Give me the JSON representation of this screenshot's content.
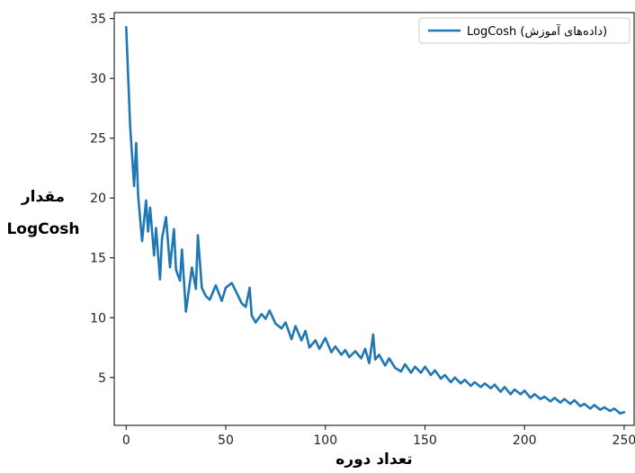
{
  "chart_data": {
    "type": "line",
    "title": "",
    "xlabel": "تعداد دوره",
    "ylabel_lines": [
      "مقدار",
      "LogCosh"
    ],
    "xlim": [
      -6,
      255
    ],
    "ylim": [
      1.0,
      35.5
    ],
    "xticks": [
      0,
      50,
      100,
      150,
      200,
      250
    ],
    "yticks": [
      5,
      10,
      15,
      20,
      25,
      30,
      35
    ],
    "grid": false,
    "legend_position": "top-right",
    "series": [
      {
        "name": "LogCosh (داده‌های آموزش)",
        "color": "#1f77b4",
        "x": [
          0,
          2,
          4,
          5,
          6,
          8,
          10,
          11,
          12,
          14,
          15,
          17,
          18,
          20,
          22,
          24,
          25,
          27,
          28,
          30,
          33,
          35,
          36,
          38,
          40,
          42,
          45,
          48,
          50,
          53,
          56,
          58,
          60,
          62,
          63,
          65,
          68,
          70,
          72,
          75,
          78,
          80,
          83,
          85,
          88,
          90,
          92,
          95,
          97,
          100,
          103,
          105,
          108,
          110,
          112,
          115,
          118,
          120,
          122,
          124,
          125,
          127,
          130,
          132,
          135,
          138,
          140,
          143,
          145,
          148,
          150,
          153,
          155,
          158,
          160,
          163,
          165,
          168,
          170,
          173,
          175,
          178,
          180,
          183,
          185,
          188,
          190,
          193,
          195,
          198,
          200,
          203,
          205,
          208,
          210,
          213,
          215,
          218,
          220,
          223,
          225,
          228,
          230,
          233,
          235,
          238,
          240,
          243,
          245,
          248,
          250
        ],
        "values": [
          34.3,
          26.0,
          21.0,
          24.6,
          20.2,
          16.4,
          19.8,
          17.2,
          19.2,
          15.2,
          17.5,
          13.2,
          16.6,
          18.4,
          14.2,
          17.4,
          14.0,
          13.1,
          15.7,
          10.5,
          14.2,
          12.4,
          16.9,
          12.5,
          11.8,
          11.5,
          12.7,
          11.4,
          12.5,
          12.9,
          11.9,
          11.2,
          10.9,
          12.5,
          10.2,
          9.6,
          10.3,
          9.9,
          10.6,
          9.5,
          9.1,
          9.6,
          8.2,
          9.3,
          8.1,
          8.9,
          7.5,
          8.1,
          7.4,
          8.3,
          7.1,
          7.6,
          6.9,
          7.3,
          6.7,
          7.2,
          6.6,
          7.4,
          6.2,
          8.6,
          6.5,
          6.9,
          6.0,
          6.6,
          5.8,
          5.5,
          6.1,
          5.4,
          5.9,
          5.4,
          5.9,
          5.2,
          5.6,
          4.9,
          5.2,
          4.6,
          5.0,
          4.5,
          4.8,
          4.3,
          4.6,
          4.2,
          4.5,
          4.1,
          4.4,
          3.8,
          4.2,
          3.6,
          4.0,
          3.6,
          3.9,
          3.3,
          3.6,
          3.2,
          3.4,
          3.0,
          3.3,
          2.9,
          3.2,
          2.8,
          3.1,
          2.6,
          2.8,
          2.4,
          2.7,
          2.3,
          2.5,
          2.2,
          2.4,
          2.0,
          2.1
        ]
      }
    ]
  }
}
